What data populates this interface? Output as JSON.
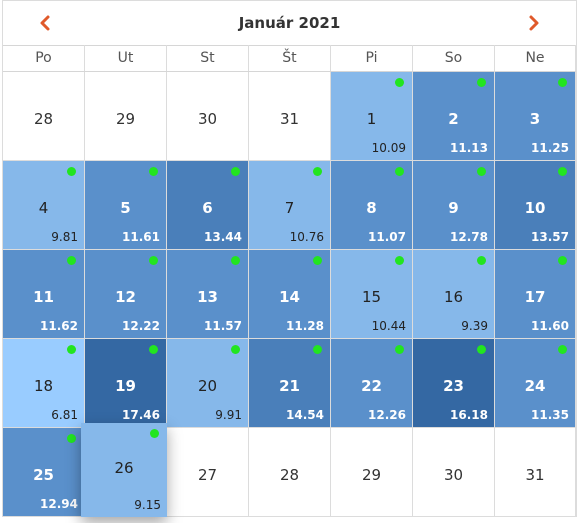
{
  "header": {
    "title": "Január 2021",
    "prev_icon": "chevron-left-icon",
    "next_icon": "chevron-right-icon",
    "accent": "#e05a2b"
  },
  "weekdays": [
    "Po",
    "Ut",
    "St",
    "Št",
    "Pi",
    "So",
    "Ne"
  ],
  "colors": {
    "dot": "#22e51f",
    "shade_1": "#7fb2e5",
    "shade_2": "#6a9fd6",
    "shade_3": "#5a90cb",
    "shade_4": "#4a7fba",
    "shade_5": "#3468a3",
    "shade_6": "#99ccff",
    "shade_7": "#86b8ea"
  },
  "days": [
    {
      "day": "28",
      "price": "",
      "other": true
    },
    {
      "day": "29",
      "price": "",
      "other": true
    },
    {
      "day": "30",
      "price": "",
      "other": true
    },
    {
      "day": "31",
      "price": "",
      "other": true
    },
    {
      "day": "1",
      "price": "10.09",
      "shade": "c7",
      "dot": true
    },
    {
      "day": "2",
      "price": "11.13",
      "shade": "c3",
      "dot": true
    },
    {
      "day": "3",
      "price": "11.25",
      "shade": "c3",
      "dot": true
    },
    {
      "day": "4",
      "price": "9.81",
      "shade": "c7",
      "dot": true
    },
    {
      "day": "5",
      "price": "11.61",
      "shade": "c3",
      "dot": true
    },
    {
      "day": "6",
      "price": "13.44",
      "shade": "c4",
      "dot": true
    },
    {
      "day": "7",
      "price": "10.76",
      "shade": "c7",
      "dot": true
    },
    {
      "day": "8",
      "price": "11.07",
      "shade": "c3",
      "dot": true
    },
    {
      "day": "9",
      "price": "12.78",
      "shade": "c3",
      "dot": true
    },
    {
      "day": "10",
      "price": "13.57",
      "shade": "c4",
      "dot": true
    },
    {
      "day": "11",
      "price": "11.62",
      "shade": "c3",
      "dot": true
    },
    {
      "day": "12",
      "price": "12.22",
      "shade": "c3",
      "dot": true
    },
    {
      "day": "13",
      "price": "11.57",
      "shade": "c3",
      "dot": true
    },
    {
      "day": "14",
      "price": "11.28",
      "shade": "c3",
      "dot": true
    },
    {
      "day": "15",
      "price": "10.44",
      "shade": "c7",
      "dot": true
    },
    {
      "day": "16",
      "price": "9.39",
      "shade": "c7",
      "dot": true
    },
    {
      "day": "17",
      "price": "11.60",
      "shade": "c3",
      "dot": true
    },
    {
      "day": "18",
      "price": "6.81",
      "shade": "c6",
      "dot": true
    },
    {
      "day": "19",
      "price": "17.46",
      "shade": "c5",
      "dot": true
    },
    {
      "day": "20",
      "price": "9.91",
      "shade": "c7",
      "dot": true
    },
    {
      "day": "21",
      "price": "14.54",
      "shade": "c4",
      "dot": true
    },
    {
      "day": "22",
      "price": "12.26",
      "shade": "c3",
      "dot": true
    },
    {
      "day": "23",
      "price": "16.18",
      "shade": "c5",
      "dot": true
    },
    {
      "day": "24",
      "price": "11.35",
      "shade": "c3",
      "dot": true
    },
    {
      "day": "25",
      "price": "12.94",
      "shade": "c3",
      "dot": true
    },
    {
      "day": "26",
      "price": "9.15",
      "shade": "c7",
      "dot": true,
      "selected": true
    },
    {
      "day": "27",
      "price": ""
    },
    {
      "day": "28",
      "price": ""
    },
    {
      "day": "29",
      "price": ""
    },
    {
      "day": "30",
      "price": ""
    },
    {
      "day": "31",
      "price": ""
    }
  ]
}
